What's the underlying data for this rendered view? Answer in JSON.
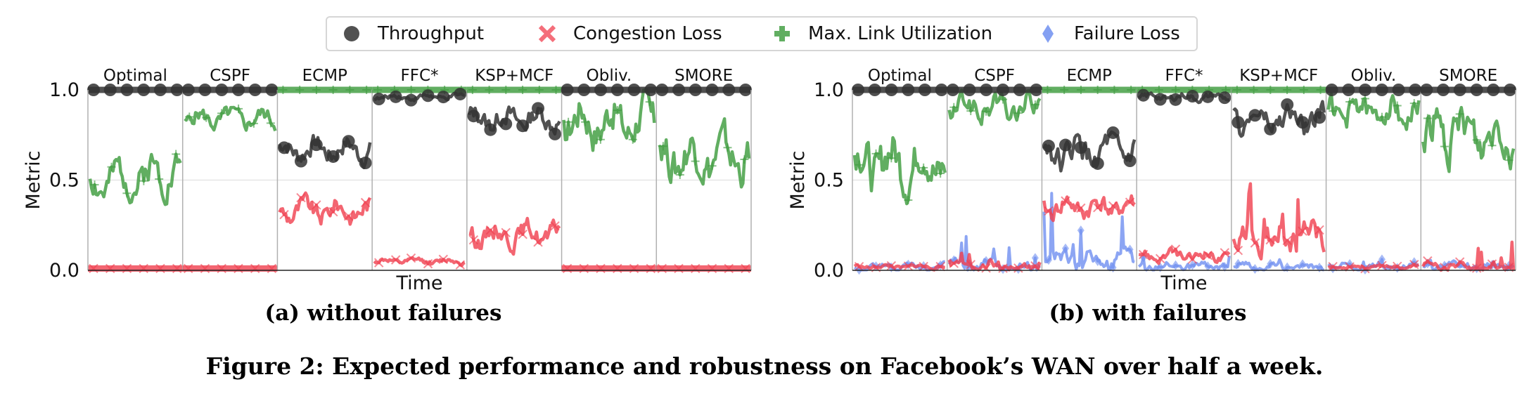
{
  "legend": {
    "items": [
      {
        "label": "Throughput",
        "color": "#333333",
        "marker": "circle"
      },
      {
        "label": "Congestion Loss",
        "color": "#f03e4e",
        "marker": "x"
      },
      {
        "label": "Max. Link Utilization",
        "color": "#3a9a3a",
        "marker": "plus"
      },
      {
        "label": "Failure Loss",
        "color": "#6f8ff0",
        "marker": "diamond"
      }
    ]
  },
  "captions": {
    "a": "(a) without failures",
    "b": "(b) with failures",
    "figure": "Figure 2: Expected performance and robustness on Facebook’s WAN over half a week."
  },
  "chart_data": [
    {
      "type": "line",
      "panel": "a",
      "xlabel": "Time",
      "ylabel": "Metric",
      "ylim": [
        0,
        1.0
      ],
      "yticks": [
        "0.0",
        "0.5",
        "1.0"
      ],
      "grid": true,
      "subplots": [
        {
          "name": "Optimal",
          "series": [
            {
              "name": "Throughput",
              "mean": 1.0,
              "amp": 0.0,
              "seed": 1
            },
            {
              "name": "Max. Link Utilization",
              "mean": 0.52,
              "amp": 0.1,
              "trend": 0.1,
              "seed": 2
            },
            {
              "name": "Congestion Loss",
              "mean": 0.01,
              "amp": 0.0,
              "seed": 3
            }
          ]
        },
        {
          "name": "CSPF",
          "series": [
            {
              "name": "Throughput",
              "mean": 1.0,
              "amp": 0.0,
              "seed": 4
            },
            {
              "name": "Max. Link Utilization",
              "mean": 0.84,
              "amp": 0.05,
              "seed": 5
            },
            {
              "name": "Congestion Loss",
              "mean": 0.01,
              "amp": 0.0,
              "seed": 6
            }
          ]
        },
        {
          "name": "ECMP",
          "series": [
            {
              "name": "Throughput",
              "mean": 0.67,
              "amp": 0.06,
              "seed": 7
            },
            {
              "name": "Max. Link Utilization",
              "mean": 1.0,
              "amp": 0.0,
              "seed": 8
            },
            {
              "name": "Congestion Loss",
              "mean": 0.33,
              "amp": 0.06,
              "seed": 9
            }
          ]
        },
        {
          "name": "FFC*",
          "series": [
            {
              "name": "Throughput",
              "mean": 0.96,
              "amp": 0.015,
              "seed": 10
            },
            {
              "name": "Max. Link Utilization",
              "mean": 1.0,
              "amp": 0.0,
              "seed": 11
            },
            {
              "name": "Congestion Loss",
              "mean": 0.05,
              "amp": 0.015,
              "seed": 12
            }
          ]
        },
        {
          "name": "KSP+MCF",
          "series": [
            {
              "name": "Throughput",
              "mean": 0.84,
              "amp": 0.06,
              "seed": 13
            },
            {
              "name": "Max. Link Utilization",
              "mean": 1.0,
              "amp": 0.0,
              "seed": 14
            },
            {
              "name": "Congestion Loss",
              "mean": 0.2,
              "amp": 0.06,
              "seed": 15
            }
          ]
        },
        {
          "name": "Obliv.",
          "series": [
            {
              "name": "Throughput",
              "mean": 1.0,
              "amp": 0.0,
              "seed": 16
            },
            {
              "name": "Max. Link Utilization",
              "mean": 0.83,
              "amp": 0.12,
              "seed": 17
            },
            {
              "name": "Congestion Loss",
              "mean": 0.01,
              "amp": 0.0,
              "seed": 18
            }
          ]
        },
        {
          "name": "SMORE",
          "series": [
            {
              "name": "Throughput",
              "mean": 1.0,
              "amp": 0.0,
              "seed": 19
            },
            {
              "name": "Max. Link Utilization",
              "mean": 0.63,
              "amp": 0.12,
              "seed": 20
            },
            {
              "name": "Congestion Loss",
              "mean": 0.01,
              "amp": 0.0,
              "seed": 21
            }
          ]
        }
      ]
    },
    {
      "type": "line",
      "panel": "b",
      "xlabel": "Time",
      "ylabel": "Metric",
      "ylim": [
        0,
        1.0
      ],
      "yticks": [
        "0.0",
        "0.5",
        "1.0"
      ],
      "grid": true,
      "subplots": [
        {
          "name": "Optimal",
          "series": [
            {
              "name": "Throughput",
              "mean": 1.0,
              "amp": 0.0,
              "seed": 31
            },
            {
              "name": "Max. Link Utilization",
              "mean": 0.6,
              "amp": 0.14,
              "seed": 32
            },
            {
              "name": "Congestion Loss",
              "mean": 0.02,
              "amp": 0.01,
              "seed": 33
            },
            {
              "name": "Failure Loss",
              "mean": 0.02,
              "amp": 0.02,
              "spikes": 0.03,
              "seed": 34
            }
          ]
        },
        {
          "name": "CSPF",
          "series": [
            {
              "name": "Throughput",
              "mean": 1.0,
              "amp": 0.0,
              "seed": 35
            },
            {
              "name": "Max. Link Utilization",
              "mean": 0.9,
              "amp": 0.07,
              "seed": 36
            },
            {
              "name": "Congestion Loss",
              "mean": 0.02,
              "amp": 0.02,
              "spikes": 0.06,
              "seed": 37
            },
            {
              "name": "Failure Loss",
              "mean": 0.03,
              "amp": 0.03,
              "spikes": 0.2,
              "seed": 38
            }
          ]
        },
        {
          "name": "ECMP",
          "series": [
            {
              "name": "Throughput",
              "mean": 0.65,
              "amp": 0.08,
              "seed": 39
            },
            {
              "name": "Max. Link Utilization",
              "mean": 1.0,
              "amp": 0.0,
              "seed": 40
            },
            {
              "name": "Congestion Loss",
              "mean": 0.35,
              "amp": 0.06,
              "seed": 41
            },
            {
              "name": "Failure Loss",
              "mean": 0.06,
              "amp": 0.05,
              "spikes": 0.35,
              "seed": 42
            }
          ]
        },
        {
          "name": "FFC*",
          "series": [
            {
              "name": "Throughput",
              "mean": 0.96,
              "amp": 0.02,
              "seed": 43
            },
            {
              "name": "Max. Link Utilization",
              "mean": 1.0,
              "amp": 0.0,
              "seed": 44
            },
            {
              "name": "Congestion Loss",
              "mean": 0.08,
              "amp": 0.03,
              "seed": 45
            },
            {
              "name": "Failure Loss",
              "mean": 0.02,
              "amp": 0.02,
              "spikes": 0.06,
              "seed": 46
            }
          ]
        },
        {
          "name": "KSP+MCF",
          "series": [
            {
              "name": "Throughput",
              "mean": 0.83,
              "amp": 0.07,
              "seed": 47
            },
            {
              "name": "Max. Link Utilization",
              "mean": 1.0,
              "amp": 0.0,
              "seed": 48
            },
            {
              "name": "Congestion Loss",
              "mean": 0.2,
              "amp": 0.08,
              "spikes": 0.25,
              "seed": 49
            },
            {
              "name": "Failure Loss",
              "mean": 0.02,
              "amp": 0.02,
              "spikes": 0.05,
              "seed": 50
            }
          ]
        },
        {
          "name": "Obliv.",
          "series": [
            {
              "name": "Throughput",
              "mean": 1.0,
              "amp": 0.0,
              "seed": 51
            },
            {
              "name": "Max. Link Utilization",
              "mean": 0.88,
              "amp": 0.08,
              "seed": 52
            },
            {
              "name": "Congestion Loss",
              "mean": 0.02,
              "amp": 0.01,
              "seed": 53
            },
            {
              "name": "Failure Loss",
              "mean": 0.02,
              "amp": 0.02,
              "spikes": 0.04,
              "seed": 54
            }
          ]
        },
        {
          "name": "SMORE",
          "series": [
            {
              "name": "Throughput",
              "mean": 1.0,
              "amp": 0.0,
              "seed": 55
            },
            {
              "name": "Max. Link Utilization",
              "mean": 0.75,
              "amp": 0.13,
              "seed": 56
            },
            {
              "name": "Congestion Loss",
              "mean": 0.02,
              "amp": 0.02,
              "spikes": 0.18,
              "seed": 57
            },
            {
              "name": "Failure Loss",
              "mean": 0.02,
              "amp": 0.02,
              "spikes": 0.04,
              "seed": 58
            }
          ]
        }
      ]
    }
  ]
}
